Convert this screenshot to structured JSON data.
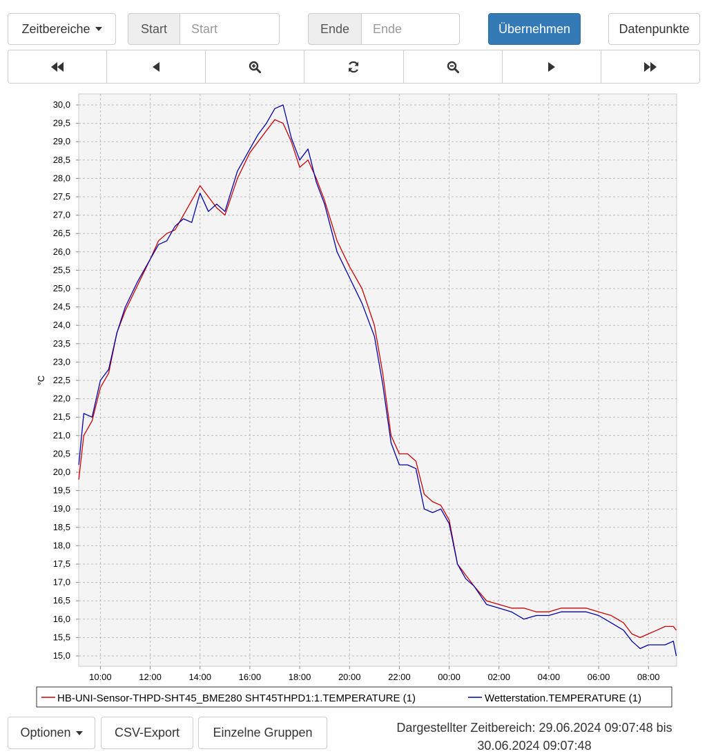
{
  "toolbar": {
    "ranges_label": "Zeitbereiche",
    "start_label": "Start",
    "start_placeholder": "Start",
    "end_label": "Ende",
    "end_placeholder": "Ende",
    "apply_label": "Übernehmen",
    "datapoints_label": "Datenpunkte"
  },
  "nav": {
    "icons": [
      "fast-backward-icon",
      "step-backward-icon",
      "zoom-in-icon",
      "refresh-icon",
      "zoom-out-icon",
      "step-forward-icon",
      "fast-forward-icon"
    ]
  },
  "footer": {
    "options_label": "Optionen",
    "csv_label": "CSV-Export",
    "groups_label": "Einzelne Gruppen",
    "range_line1": "Dargestellter Zeitbereich: 29.06.2024 09:07:48 bis",
    "range_line2": "30.06.2024 09:07:48"
  },
  "chart_data": {
    "type": "line",
    "ylabel": "°C",
    "xlabel": "",
    "xlim": [
      "29.06.2024 09:07:48",
      "30.06.2024 09:07:48"
    ],
    "ylim": [
      15.0,
      30.0
    ],
    "grid": true,
    "legend_position": "bottom",
    "x_ticks": [
      "10:00",
      "12:00",
      "14:00",
      "16:00",
      "18:00",
      "20:00",
      "22:00",
      "00:00",
      "02:00",
      "04:00",
      "06:00",
      "08:00"
    ],
    "y_ticks": [
      "15,0",
      "15,5",
      "16,0",
      "16,5",
      "17,0",
      "17,5",
      "18,0",
      "18,5",
      "19,0",
      "19,5",
      "20,0",
      "20,5",
      "21,0",
      "21,5",
      "22,0",
      "22,5",
      "23,0",
      "23,5",
      "24,0",
      "24,5",
      "25,0",
      "25,5",
      "26,0",
      "26,5",
      "27,0",
      "27,5",
      "28,0",
      "28,5",
      "29,0",
      "29,5",
      "30,0"
    ],
    "series": [
      {
        "name": "HB-UNI-Sensor-THPD-SHT45_BME280 SHT45THPD1:1.TEMPERATURE (1)",
        "color": "#cc0000",
        "x": [
          "29.06.2024 09:08",
          "29.06.2024 09:20",
          "29.06.2024 09:40",
          "29.06.2024 10:00",
          "29.06.2024 10:20",
          "29.06.2024 10:40",
          "29.06.2024 11:00",
          "29.06.2024 11:30",
          "29.06.2024 12:00",
          "29.06.2024 12:20",
          "29.06.2024 12:40",
          "29.06.2024 13:00",
          "29.06.2024 13:20",
          "29.06.2024 13:40",
          "29.06.2024 14:00",
          "29.06.2024 14:20",
          "29.06.2024 14:40",
          "29.06.2024 15:00",
          "29.06.2024 15:30",
          "29.06.2024 16:00",
          "29.06.2024 16:20",
          "29.06.2024 16:40",
          "29.06.2024 17:00",
          "29.06.2024 17:20",
          "29.06.2024 17:40",
          "29.06.2024 18:00",
          "29.06.2024 18:20",
          "29.06.2024 18:40",
          "29.06.2024 19:00",
          "29.06.2024 19:30",
          "29.06.2024 20:00",
          "29.06.2024 20:30",
          "29.06.2024 21:00",
          "29.06.2024 21:20",
          "29.06.2024 21:40",
          "29.06.2024 22:00",
          "29.06.2024 22:20",
          "29.06.2024 22:40",
          "29.06.2024 23:00",
          "29.06.2024 23:20",
          "29.06.2024 23:40",
          "30.06.2024 00:00",
          "30.06.2024 00:20",
          "30.06.2024 00:40",
          "30.06.2024 01:00",
          "30.06.2024 01:30",
          "30.06.2024 02:00",
          "30.06.2024 02:30",
          "30.06.2024 03:00",
          "30.06.2024 03:30",
          "30.06.2024 04:00",
          "30.06.2024 04:30",
          "30.06.2024 05:00",
          "30.06.2024 05:30",
          "30.06.2024 06:00",
          "30.06.2024 06:30",
          "30.06.2024 07:00",
          "30.06.2024 07:20",
          "30.06.2024 07:40",
          "30.06.2024 08:00",
          "30.06.2024 08:20",
          "30.06.2024 08:40",
          "30.06.2024 09:00",
          "30.06.2024 09:07"
        ],
        "y": [
          19.8,
          21.0,
          21.4,
          22.3,
          22.7,
          23.8,
          24.4,
          25.1,
          25.8,
          26.3,
          26.5,
          26.6,
          27.0,
          27.4,
          27.8,
          27.5,
          27.2,
          27.0,
          28.0,
          28.7,
          29.0,
          29.3,
          29.6,
          29.5,
          29.0,
          28.3,
          28.5,
          28.0,
          27.4,
          26.3,
          25.6,
          25.0,
          24.0,
          22.7,
          21.0,
          20.5,
          20.5,
          20.3,
          19.4,
          19.2,
          19.1,
          18.7,
          17.5,
          17.2,
          16.9,
          16.5,
          16.4,
          16.3,
          16.3,
          16.2,
          16.2,
          16.3,
          16.3,
          16.3,
          16.2,
          16.1,
          15.9,
          15.6,
          15.5,
          15.6,
          15.7,
          15.8,
          15.8,
          15.7
        ]
      },
      {
        "name": "Wetterstation.TEMPERATURE (1)",
        "color": "#0000aa",
        "x": [
          "29.06.2024 09:08",
          "29.06.2024 09:20",
          "29.06.2024 09:40",
          "29.06.2024 10:00",
          "29.06.2024 10:20",
          "29.06.2024 10:40",
          "29.06.2024 11:00",
          "29.06.2024 11:30",
          "29.06.2024 12:00",
          "29.06.2024 12:20",
          "29.06.2024 12:40",
          "29.06.2024 13:00",
          "29.06.2024 13:20",
          "29.06.2024 13:40",
          "29.06.2024 14:00",
          "29.06.2024 14:20",
          "29.06.2024 14:40",
          "29.06.2024 15:00",
          "29.06.2024 15:30",
          "29.06.2024 16:00",
          "29.06.2024 16:20",
          "29.06.2024 16:40",
          "29.06.2024 17:00",
          "29.06.2024 17:20",
          "29.06.2024 17:40",
          "29.06.2024 18:00",
          "29.06.2024 18:20",
          "29.06.2024 18:40",
          "29.06.2024 19:00",
          "29.06.2024 19:30",
          "29.06.2024 20:00",
          "29.06.2024 20:30",
          "29.06.2024 21:00",
          "29.06.2024 21:20",
          "29.06.2024 21:40",
          "29.06.2024 22:00",
          "29.06.2024 22:20",
          "29.06.2024 22:40",
          "29.06.2024 23:00",
          "29.06.2024 23:20",
          "29.06.2024 23:40",
          "30.06.2024 00:00",
          "30.06.2024 00:20",
          "30.06.2024 00:40",
          "30.06.2024 01:00",
          "30.06.2024 01:30",
          "30.06.2024 02:00",
          "30.06.2024 02:30",
          "30.06.2024 03:00",
          "30.06.2024 03:30",
          "30.06.2024 04:00",
          "30.06.2024 04:30",
          "30.06.2024 05:00",
          "30.06.2024 05:30",
          "30.06.2024 06:00",
          "30.06.2024 06:30",
          "30.06.2024 07:00",
          "30.06.2024 07:20",
          "30.06.2024 07:40",
          "30.06.2024 08:00",
          "30.06.2024 08:20",
          "30.06.2024 08:40",
          "30.06.2024 09:00",
          "30.06.2024 09:07"
        ],
        "y": [
          20.2,
          21.6,
          21.5,
          22.5,
          22.8,
          23.8,
          24.5,
          25.2,
          25.8,
          26.2,
          26.3,
          26.7,
          26.9,
          26.8,
          27.6,
          27.1,
          27.3,
          27.1,
          28.2,
          28.8,
          29.2,
          29.5,
          29.9,
          30.0,
          29.1,
          28.5,
          28.8,
          27.9,
          27.3,
          26.0,
          25.3,
          24.6,
          23.7,
          22.4,
          20.8,
          20.2,
          20.2,
          20.1,
          19.0,
          18.9,
          19.0,
          18.6,
          17.5,
          17.1,
          16.9,
          16.4,
          16.3,
          16.2,
          16.0,
          16.1,
          16.1,
          16.2,
          16.2,
          16.2,
          16.1,
          15.9,
          15.7,
          15.4,
          15.2,
          15.3,
          15.3,
          15.3,
          15.4,
          15.0
        ]
      }
    ]
  }
}
